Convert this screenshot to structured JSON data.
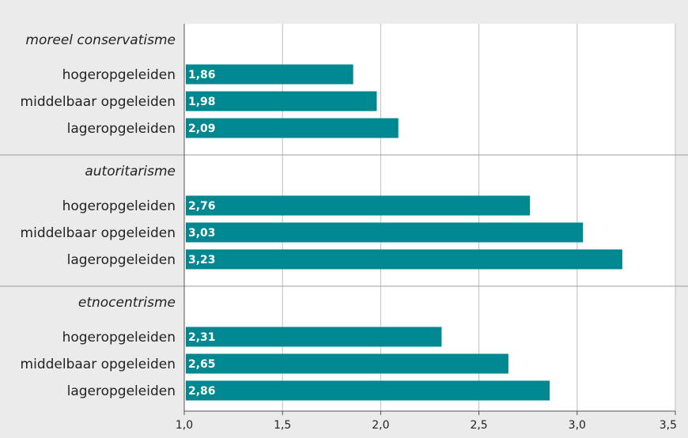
{
  "chart_data": {
    "type": "bar",
    "orientation": "horizontal",
    "groups": [
      {
        "title": "moreel conservatisme",
        "items": [
          {
            "label": "hogeropgeleiden",
            "value": 1.86,
            "display": "1,86"
          },
          {
            "label": "middelbaar opgeleiden",
            "value": 1.98,
            "display": "1,98"
          },
          {
            "label": "lageropgeleiden",
            "value": 2.09,
            "display": "2,09"
          }
        ]
      },
      {
        "title": "autoritarisme",
        "items": [
          {
            "label": "hogeropgeleiden",
            "value": 2.76,
            "display": "2,76"
          },
          {
            "label": "middelbaar opgeleiden",
            "value": 3.03,
            "display": "3,03"
          },
          {
            "label": "lageropgeleiden",
            "value": 3.23,
            "display": "3,23"
          }
        ]
      },
      {
        "title": "etnocentrisme",
        "items": [
          {
            "label": "hogeropgeleiden",
            "value": 2.31,
            "display": "2,31"
          },
          {
            "label": "middelbaar opgeleiden",
            "value": 2.65,
            "display": "2,65"
          },
          {
            "label": "lageropgeleiden",
            "value": 2.86,
            "display": "2,86"
          }
        ]
      }
    ],
    "xlim": [
      1.0,
      3.5
    ],
    "xticks": [
      1.0,
      1.5,
      2.0,
      2.5,
      3.0,
      3.5
    ],
    "xtick_labels": [
      "1,0",
      "1,5",
      "2,0",
      "2,5",
      "3,0",
      "3,5"
    ],
    "grid": true,
    "colors": {
      "bar": "#008891",
      "background": "#ebebeb",
      "plot_background": "#ffffff",
      "gridline": "#bdbdbd",
      "separator": "#9e9e9e"
    }
  }
}
